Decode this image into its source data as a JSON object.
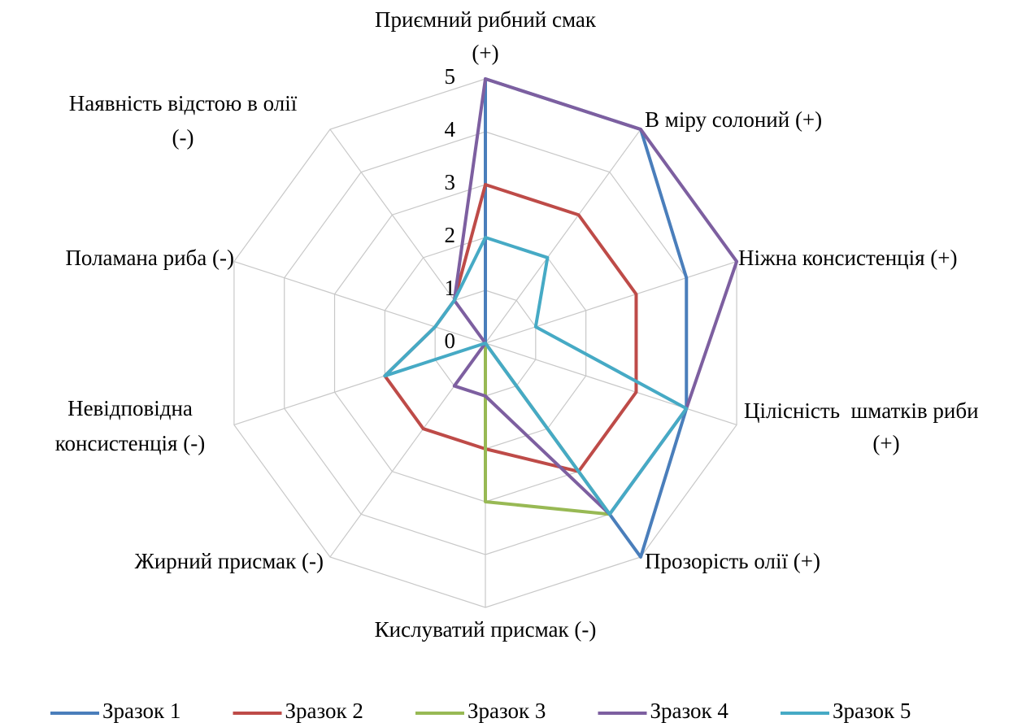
{
  "chart_data": {
    "type": "radar",
    "categories": [
      [
        "Приємний рибний смак",
        "(+)"
      ],
      [
        "В міру солоний (+)"
      ],
      [
        "Ніжна консистенція (+)"
      ],
      [
        "Цілісність  шматків риби",
        "(+)"
      ],
      [
        "Прозорість олії (+)"
      ],
      [
        "Кислуватий присмак (-)"
      ],
      [
        "Жирний присмак (-)"
      ],
      [
        "Невідповідна",
        "консистенція (-)"
      ],
      [
        "Поламана риба (-)"
      ],
      [
        "Наявність відстою в олії",
        "(-)"
      ]
    ],
    "series": [
      {
        "name": "Зразок 1",
        "color": "#4a7ebb",
        "values": [
          5,
          5,
          4,
          4,
          5,
          0,
          0,
          0,
          0,
          0
        ]
      },
      {
        "name": "Зразок 2",
        "color": "#be4b48",
        "values": [
          3,
          3,
          3,
          3,
          3,
          2,
          2,
          2,
          1,
          1
        ]
      },
      {
        "name": "Зразок 3",
        "color": "#98b954",
        "values": [
          0,
          0,
          0,
          0,
          4,
          3,
          0,
          0,
          0,
          0
        ]
      },
      {
        "name": "Зразок 4",
        "color": "#7d5fa0",
        "values": [
          5,
          5,
          5,
          4,
          4,
          1,
          1,
          0,
          0,
          1
        ]
      },
      {
        "name": "Зразок 5",
        "color": "#46aac5",
        "values": [
          2,
          2,
          1,
          4,
          4,
          0,
          0,
          2,
          1,
          1
        ]
      }
    ],
    "ylim": [
      0,
      5
    ],
    "yticks": [
      0,
      1,
      2,
      3,
      4,
      5
    ],
    "grid": true,
    "legend": "bottom"
  }
}
